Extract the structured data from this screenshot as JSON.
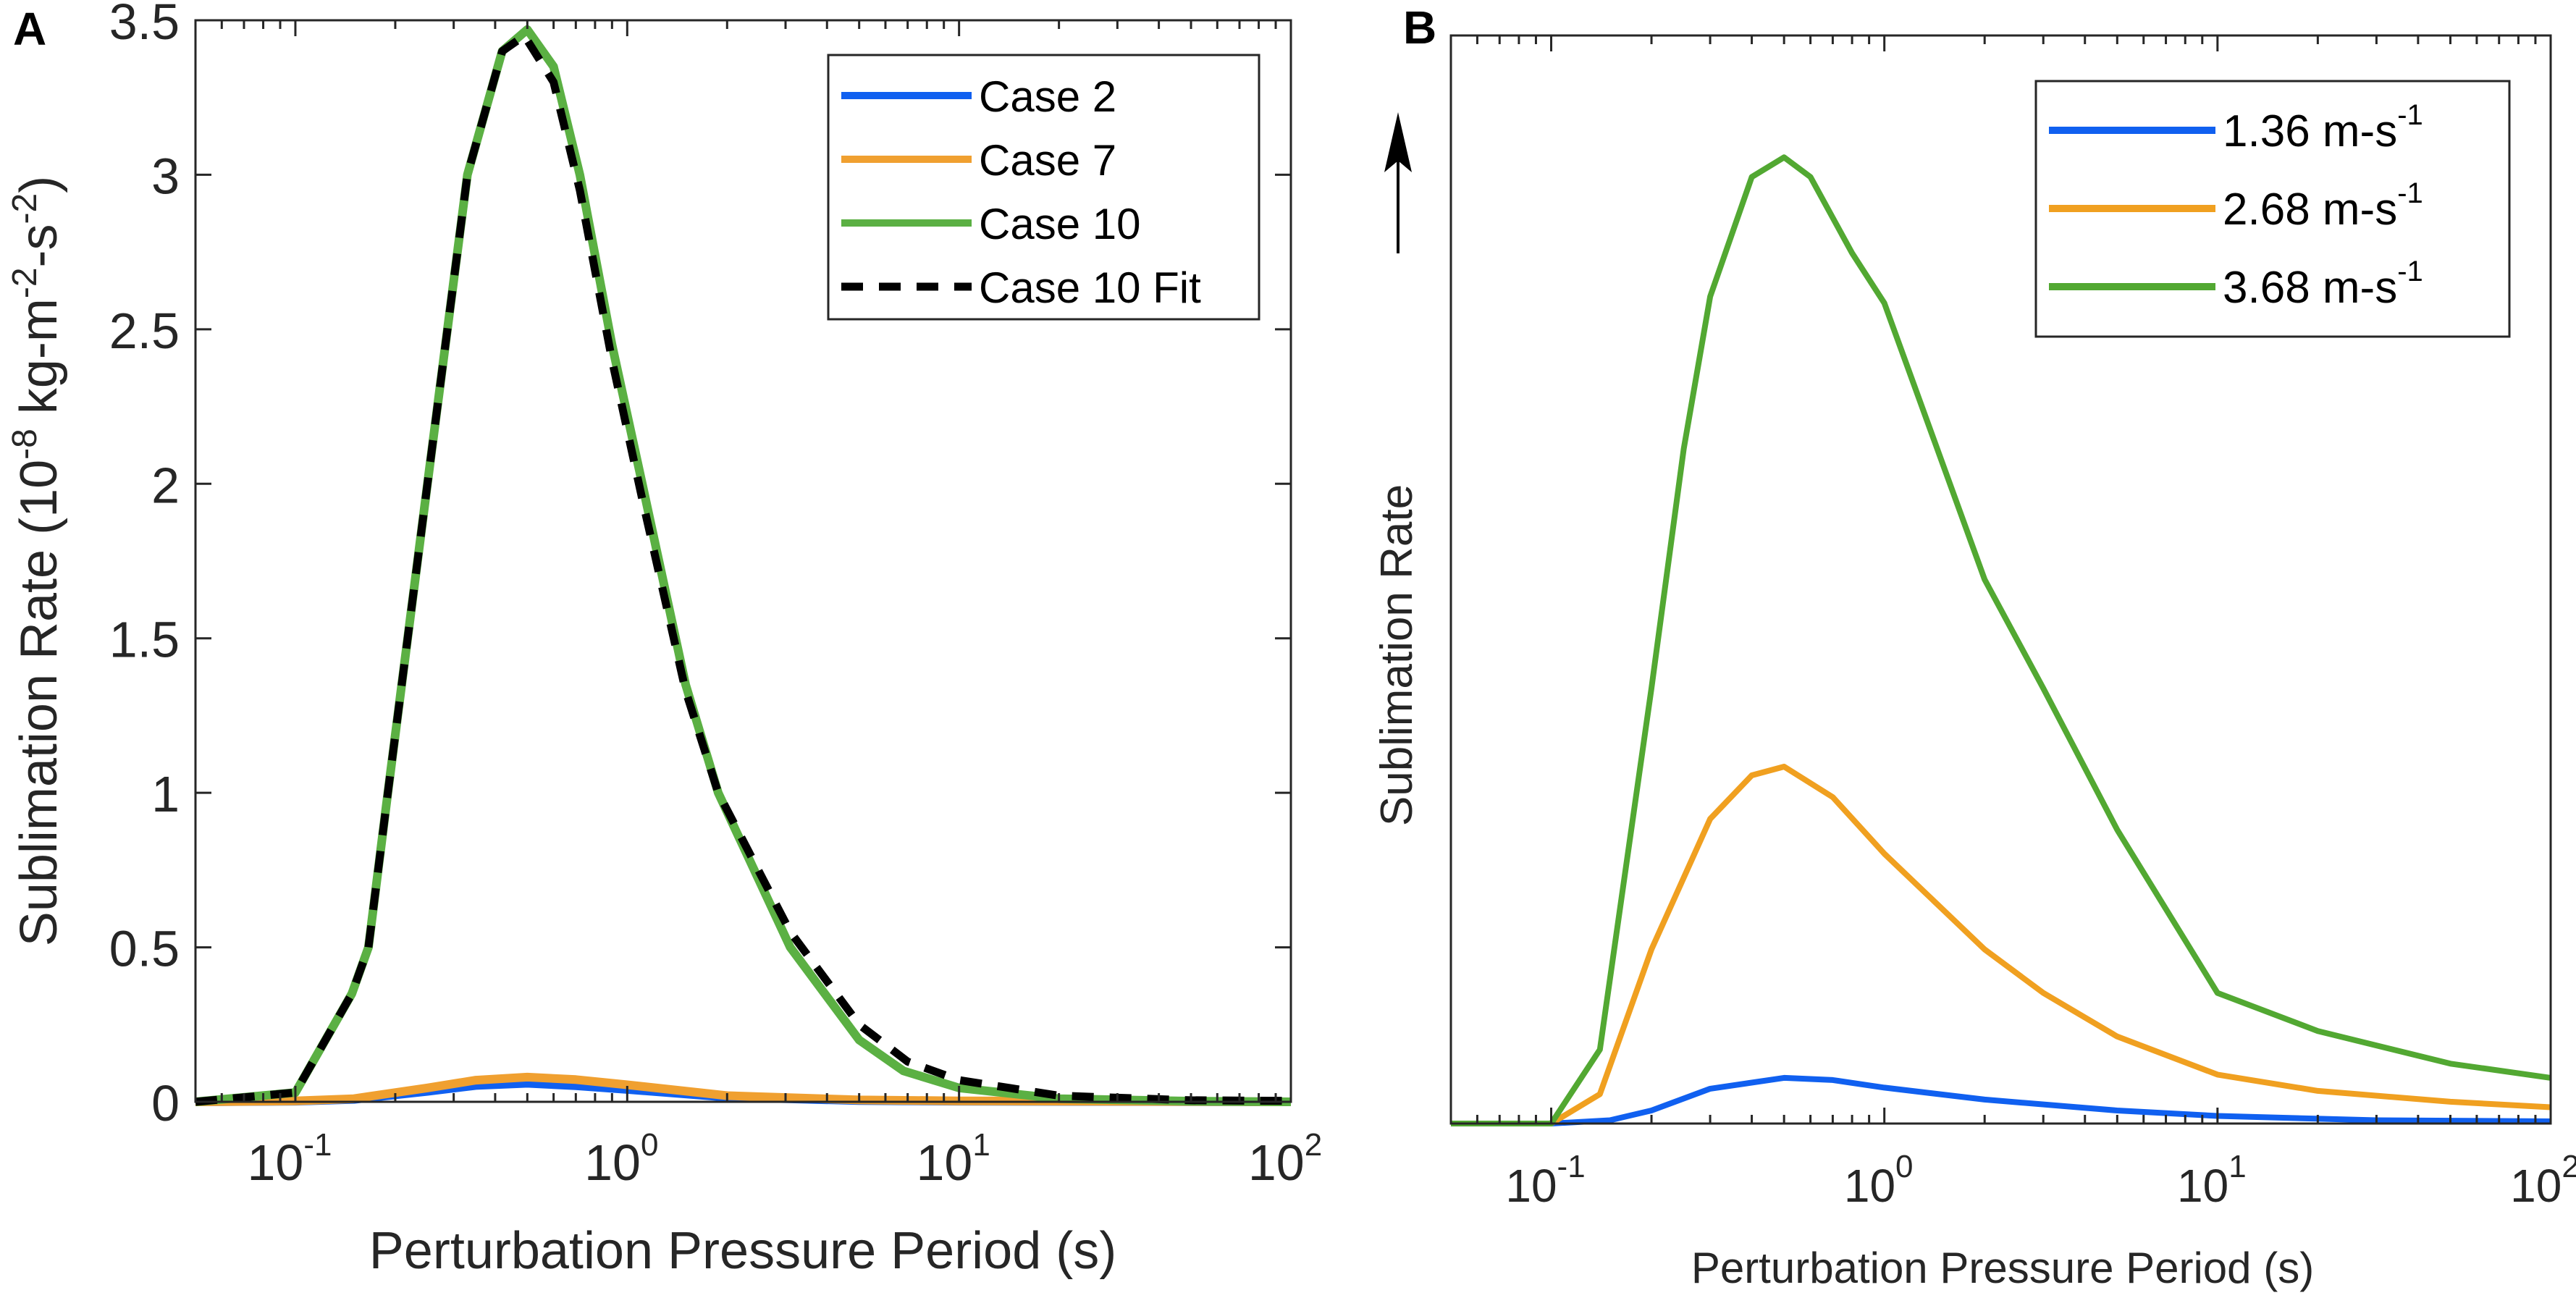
{
  "chart_data": [
    {
      "type": "line",
      "panel_label": "A",
      "xlabel": "Perturbation Pressure Period (s)",
      "ylabel": "Sublimation Rate (10^-8 kg-m^-2-s^-2)",
      "ylabel_parts": {
        "pre": "Sublimation Rate (10",
        "sup1": "-8",
        "mid1": " kg-m",
        "sup2": "-2",
        "mid2": "-s",
        "sup3": "-2",
        "post": ")"
      },
      "xscale": "log",
      "xlim": [
        0.05,
        100
      ],
      "ylim": [
        0,
        3.5
      ],
      "xticks": [
        {
          "base": "10",
          "exp": "-1",
          "value": 0.1
        },
        {
          "base": "10",
          "exp": "0",
          "value": 1
        },
        {
          "base": "10",
          "exp": "1",
          "value": 10
        },
        {
          "base": "10",
          "exp": "2",
          "value": 100
        }
      ],
      "yticks": [
        "0",
        "0.5",
        "1",
        "1.5",
        "2",
        "2.5",
        "3",
        "3.5"
      ],
      "grid": false,
      "legend_position": "top-right",
      "series": [
        {
          "name": "Case 2",
          "color": "#1060f0",
          "dash": false,
          "x": [
            0.05,
            0.1,
            0.15,
            0.25,
            0.35,
            0.5,
            0.7,
            1,
            2,
            5,
            10,
            100
          ],
          "y": [
            0,
            0.002,
            0.008,
            0.034,
            0.053,
            0.06,
            0.052,
            0.04,
            0.015,
            0.004,
            0.002,
            0
          ]
        },
        {
          "name": "Case 7",
          "color": "#f0a030",
          "dash": false,
          "x": [
            0.05,
            0.1,
            0.15,
            0.25,
            0.35,
            0.5,
            0.7,
            1,
            2,
            5,
            10,
            100
          ],
          "y": [
            0,
            0.003,
            0.01,
            0.045,
            0.07,
            0.08,
            0.072,
            0.055,
            0.02,
            0.006,
            0.003,
            0
          ]
        },
        {
          "name": "Case 10",
          "color": "#5bb043",
          "dash": false,
          "x": [
            0.05,
            0.1,
            0.148,
            0.166,
            0.19,
            0.25,
            0.33,
            0.42,
            0.5,
            0.6,
            0.72,
            0.9,
            1.11,
            1.5,
            1.88,
            3.1,
            5,
            6.8,
            10,
            20,
            50,
            100
          ],
          "y": [
            0,
            0.03,
            0.35,
            0.5,
            1,
            2,
            3,
            3.4,
            3.47,
            3.35,
            3,
            2.45,
            2,
            1.35,
            1,
            0.5,
            0.2,
            0.1,
            0.045,
            0.01,
            0.002,
            0
          ]
        },
        {
          "name": "Case 10 Fit",
          "color": "#000000",
          "dash": true,
          "x": [
            0.05,
            0.1,
            0.148,
            0.166,
            0.19,
            0.25,
            0.33,
            0.42,
            0.49,
            0.6,
            0.72,
            0.9,
            1.11,
            1.5,
            1.88,
            3.1,
            5,
            7,
            10,
            20,
            50,
            100
          ],
          "y": [
            0,
            0.03,
            0.35,
            0.5,
            1,
            2,
            3,
            3.4,
            3.45,
            3.3,
            2.95,
            2.4,
            1.95,
            1.33,
            1,
            0.55,
            0.25,
            0.13,
            0.07,
            0.02,
            0.005,
            0.003
          ]
        }
      ]
    },
    {
      "type": "line",
      "panel_label": "B",
      "xlabel": "Perturbation Pressure Period (s)",
      "ylabel": "Sublimation Rate",
      "xscale": "log",
      "xlim": [
        0.05,
        100
      ],
      "ylim": [
        0,
        1
      ],
      "y_units": "arbitrary (no tick labels)",
      "xticks": [
        {
          "base": "10",
          "exp": "-1",
          "value": 0.1
        },
        {
          "base": "10",
          "exp": "0",
          "value": 1
        },
        {
          "base": "10",
          "exp": "1",
          "value": 10
        },
        {
          "base": "10",
          "exp": "2",
          "value": 100
        }
      ],
      "grid": false,
      "legend_position": "top-right",
      "series": [
        {
          "name": "1.36 m-s^-1",
          "label_base": "1.36 m-s",
          "label_sup": "-1",
          "color": "#1060f0",
          "x": [
            0.05,
            0.1,
            0.15,
            0.2,
            0.3,
            0.5,
            0.7,
            1,
            2,
            5,
            10,
            30,
            100
          ],
          "y": [
            0,
            0,
            0.003,
            0.012,
            0.032,
            0.042,
            0.04,
            0.033,
            0.022,
            0.012,
            0.007,
            0.003,
            0.002
          ]
        },
        {
          "name": "2.68 m-s^-1",
          "label_base": "2.68 m-s",
          "label_sup": "-1",
          "color": "#f0a020",
          "x": [
            0.05,
            0.1,
            0.14,
            0.2,
            0.3,
            0.4,
            0.5,
            0.7,
            1,
            2,
            3,
            5,
            10,
            20,
            50,
            100
          ],
          "y": [
            0,
            0,
            0.027,
            0.16,
            0.28,
            0.32,
            0.328,
            0.3,
            0.248,
            0.16,
            0.12,
            0.08,
            0.045,
            0.03,
            0.02,
            0.015
          ]
        },
        {
          "name": "3.68 m-s^-1",
          "label_base": "3.68 m-s",
          "label_sup": "-1",
          "color": "#52a832",
          "x": [
            0.05,
            0.1,
            0.14,
            0.2,
            0.25,
            0.3,
            0.4,
            0.5,
            0.6,
            0.8,
            1,
            2,
            3,
            5,
            10,
            20,
            50,
            100
          ],
          "y": [
            0,
            0,
            0.068,
            0.4,
            0.62,
            0.76,
            0.87,
            0.888,
            0.87,
            0.8,
            0.754,
            0.5,
            0.4,
            0.27,
            0.12,
            0.085,
            0.055,
            0.042
          ]
        }
      ]
    }
  ]
}
